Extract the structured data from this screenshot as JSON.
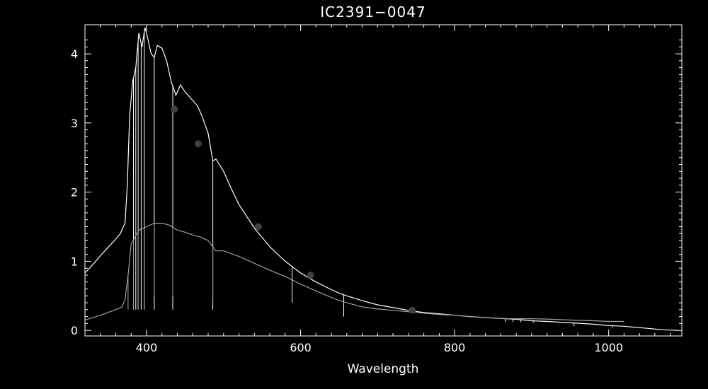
{
  "chart_data": {
    "type": "line",
    "title": "IC2391−0047",
    "xlabel": "Wavelength",
    "ylabel": "",
    "xlim": [
      320,
      1095
    ],
    "ylim": [
      -0.08,
      4.42
    ],
    "x_ticks": [
      400,
      600,
      800,
      1000
    ],
    "y_ticks": [
      0,
      1,
      2,
      3,
      4
    ],
    "grid": false,
    "legend": "none",
    "colors": {
      "background": "#000000",
      "axes": "#ffffff",
      "upper_series": "#ffffff",
      "lower_series": "#a0a0a0",
      "points": "#404040"
    },
    "series": [
      {
        "values": {
          "x": [
            320,
            330,
            340,
            350,
            360,
            366,
            369,
            372,
            375,
            378,
            382,
            386,
            390,
            394,
            398,
            402,
            406,
            410,
            414,
            420,
            426,
            432,
            438,
            444,
            450,
            458,
            466,
            472,
            480,
            486,
            490,
            500,
            510,
            520,
            540,
            560,
            580,
            600,
            620,
            640,
            650,
            660,
            680,
            700,
            720,
            740,
            760,
            780,
            800,
            820,
            850,
            880,
            900,
            920,
            950,
            980,
            1000,
            1020,
            1050,
            1070,
            1090
          ],
          "y": [
            0.83,
            0.95,
            1.08,
            1.2,
            1.32,
            1.4,
            1.48,
            1.55,
            2.1,
            3.1,
            3.6,
            3.8,
            4.3,
            4.1,
            4.38,
            4.2,
            4.0,
            3.95,
            4.12,
            4.08,
            3.9,
            3.6,
            3.4,
            3.55,
            3.45,
            3.35,
            3.25,
            3.1,
            2.85,
            2.45,
            2.48,
            2.3,
            2.05,
            1.82,
            1.48,
            1.21,
            1.0,
            0.83,
            0.7,
            0.59,
            0.54,
            0.5,
            0.43,
            0.37,
            0.33,
            0.29,
            0.26,
            0.24,
            0.22,
            0.2,
            0.18,
            0.16,
            0.14,
            0.13,
            0.11,
            0.09,
            0.07,
            0.06,
            0.03,
            0.01,
            0.0
          ]
        },
        "absorption_lines": [
          {
            "x": 383,
            "y": 0.3
          },
          {
            "x": 386,
            "y": 0.3
          },
          {
            "x": 389,
            "y": 0.3
          },
          {
            "x": 393,
            "y": 0.3
          },
          {
            "x": 397,
            "y": 0.3
          },
          {
            "x": 410,
            "y": 0.3
          },
          {
            "x": 434,
            "y": 0.3
          },
          {
            "x": 486,
            "y": 0.3
          },
          {
            "x": 589,
            "y": 0.4
          },
          {
            "x": 656,
            "y": 0.2
          },
          {
            "x": 866,
            "y": 0.12
          },
          {
            "x": 876,
            "y": 0.12
          },
          {
            "x": 886,
            "y": 0.12
          },
          {
            "x": 902,
            "y": 0.11
          },
          {
            "x": 955,
            "y": 0.06
          },
          {
            "x": 1005,
            "y": 0.04
          }
        ]
      },
      {
        "values": {
          "x": [
            320,
            340,
            360,
            368,
            372,
            376,
            380,
            390,
            400,
            410,
            420,
            430,
            440,
            450,
            460,
            470,
            480,
            490,
            500,
            520,
            540,
            560,
            580,
            600,
            620,
            650,
            680,
            700,
            720,
            750,
            780,
            800,
            820,
            850,
            870,
            900,
            930,
            950,
            980,
            1000,
            1020
          ],
          "y": [
            0.15,
            0.22,
            0.3,
            0.34,
            0.45,
            0.8,
            1.25,
            1.45,
            1.5,
            1.55,
            1.55,
            1.52,
            1.45,
            1.42,
            1.38,
            1.35,
            1.3,
            1.15,
            1.15,
            1.07,
            0.97,
            0.87,
            0.78,
            0.67,
            0.57,
            0.43,
            0.34,
            0.31,
            0.29,
            0.26,
            0.23,
            0.22,
            0.2,
            0.18,
            0.17,
            0.17,
            0.16,
            0.15,
            0.14,
            0.13,
            0.13
          ]
        },
        "absorption_lines": [
          {
            "x": 376,
            "y": 0.3
          },
          {
            "x": 383,
            "y": 0.3
          },
          {
            "x": 389,
            "y": 0.3
          },
          {
            "x": 397,
            "y": 0.3
          },
          {
            "x": 410,
            "y": 0.5
          },
          {
            "x": 434,
            "y": 0.5
          },
          {
            "x": 486,
            "y": 0.4
          }
        ]
      }
    ],
    "points": {
      "x": [
        436,
        467,
        545,
        613,
        745
      ],
      "y": [
        3.2,
        2.7,
        1.5,
        0.8,
        0.29
      ]
    }
  }
}
